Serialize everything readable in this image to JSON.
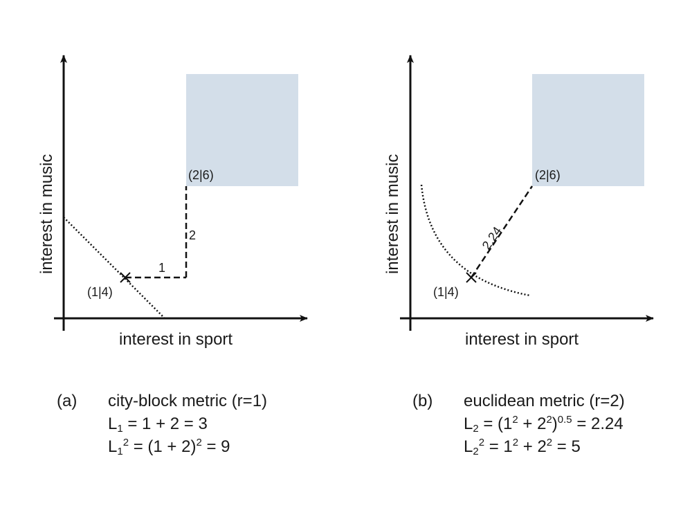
{
  "panel_a": {
    "x_axis_label": "interest in sport",
    "y_axis_label": "interest in music",
    "point_start": "(1|4)",
    "point_end": "(2|6)",
    "segment_horizontal_label": "1",
    "segment_vertical_label": "2",
    "caption": {
      "tag": "(a)",
      "title": "city-block metric (r=1)",
      "line2": {
        "L": "L",
        "sub": "1",
        "rest": " = 1 + 2 = 3"
      },
      "line3": {
        "L": "L",
        "sub": "1",
        "sup": "2",
        "rest": " = (1 + 2)",
        "sup2": "2",
        "end": " = 9"
      }
    }
  },
  "panel_b": {
    "x_axis_label": "interest in sport",
    "y_axis_label": "interest in music",
    "point_start": "(1|4)",
    "point_end": "(2|6)",
    "segment_diagonal_label": "2.24",
    "caption": {
      "tag": "(b)",
      "title": "euclidean metric (r=2)",
      "line2": {
        "L": "L",
        "sub": "2",
        "rest1": " = (1",
        "sup1": "2",
        "rest2": " + 2",
        "sup2": "2",
        "rest3": ")",
        "sup3": "0.5",
        "end": " = 2.24"
      },
      "line3": {
        "L": "L",
        "sub": "2",
        "sup": "2",
        "rest1": " = 1",
        "sup1": "2",
        "rest2": " + 2",
        "sup2": "2",
        "end": " = 5"
      }
    }
  },
  "colors": {
    "region": "#d3dee9",
    "ink": "#111111"
  }
}
